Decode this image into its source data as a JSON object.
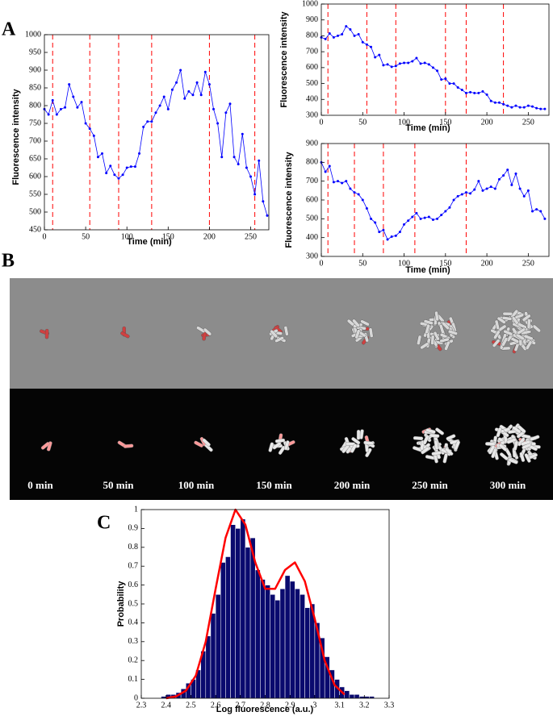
{
  "panel_labels": [
    "A",
    "B",
    "C"
  ],
  "image_labels": [
    "0 min",
    "50 min",
    "100 min",
    "150 min",
    "200 min",
    "250 min",
    "300 min"
  ],
  "chart_data": [
    {
      "type": "line",
      "xlabel": "Time (min)",
      "ylabel": "Fluorescence intensity",
      "xlim": [
        0,
        272
      ],
      "ylim": [
        450,
        1000
      ],
      "xticks": [
        0,
        50,
        100,
        150,
        200,
        250
      ],
      "yticks": [
        450,
        500,
        550,
        600,
        650,
        700,
        750,
        800,
        850,
        900,
        950,
        1000
      ],
      "x": [
        0,
        5,
        10,
        15,
        20,
        25,
        30,
        35,
        40,
        45,
        50,
        55,
        60,
        65,
        70,
        75,
        80,
        85,
        90,
        95,
        100,
        105,
        110,
        115,
        120,
        125,
        130,
        135,
        140,
        145,
        150,
        155,
        160,
        165,
        170,
        175,
        180,
        185,
        190,
        195,
        200,
        205,
        210,
        215,
        220,
        225,
        230,
        235,
        240,
        245,
        250,
        255,
        260,
        265,
        270
      ],
      "series": [
        {
          "color": "#0000ff",
          "values": [
            790,
            775,
            815,
            775,
            790,
            795,
            860,
            825,
            795,
            810,
            750,
            735,
            715,
            655,
            665,
            610,
            630,
            605,
            595,
            605,
            625,
            628,
            628,
            665,
            740,
            755,
            755,
            780,
            800,
            825,
            790,
            845,
            865,
            900,
            820,
            840,
            830,
            865,
            830,
            895,
            860,
            790,
            750,
            655,
            780,
            805,
            655,
            635,
            720,
            625,
            600,
            550,
            645,
            530,
            490
          ]
        }
      ],
      "vlines": {
        "color": "#ff0000",
        "x": [
          10,
          55,
          90,
          130,
          200,
          255
        ]
      }
    },
    {
      "type": "line",
      "xlabel": "Time (min)",
      "ylabel": "Fluorescence intensity",
      "xlim": [
        0,
        275
      ],
      "ylim": [
        300,
        1000
      ],
      "xticks": [
        0,
        50,
        100,
        150,
        200,
        250
      ],
      "yticks": [
        300,
        400,
        500,
        600,
        700,
        800,
        900,
        1000
      ],
      "x": [
        0,
        5,
        10,
        15,
        20,
        25,
        30,
        35,
        40,
        45,
        50,
        55,
        60,
        65,
        70,
        75,
        80,
        85,
        90,
        95,
        100,
        105,
        110,
        115,
        120,
        125,
        130,
        135,
        140,
        145,
        150,
        155,
        160,
        165,
        170,
        175,
        180,
        185,
        190,
        195,
        200,
        205,
        210,
        215,
        220,
        225,
        230,
        235,
        240,
        245,
        250,
        255,
        260,
        265,
        270
      ],
      "series": [
        {
          "color": "#0000ff",
          "values": [
            790,
            780,
            815,
            790,
            800,
            810,
            860,
            840,
            800,
            810,
            760,
            745,
            730,
            665,
            680,
            615,
            620,
            605,
            610,
            625,
            630,
            630,
            640,
            660,
            625,
            630,
            620,
            600,
            580,
            525,
            530,
            500,
            500,
            475,
            460,
            440,
            445,
            440,
            440,
            450,
            430,
            390,
            380,
            380,
            370,
            360,
            350,
            360,
            350,
            350,
            360,
            355,
            345,
            340,
            340
          ]
        }
      ],
      "vlines": {
        "color": "#ff0000",
        "x": [
          8,
          55,
          90,
          150,
          175,
          220
        ]
      }
    },
    {
      "type": "line",
      "xlabel": "Time (min)",
      "ylabel": "Fluorescence intensity",
      "xlim": [
        0,
        275
      ],
      "ylim": [
        300,
        900
      ],
      "xticks": [
        0,
        50,
        100,
        150,
        200,
        250
      ],
      "yticks": [
        300,
        400,
        500,
        600,
        700,
        800,
        900
      ],
      "x": [
        0,
        5,
        10,
        15,
        20,
        25,
        30,
        35,
        40,
        45,
        50,
        55,
        60,
        65,
        70,
        75,
        80,
        85,
        90,
        95,
        100,
        105,
        110,
        115,
        120,
        125,
        130,
        135,
        140,
        145,
        150,
        155,
        160,
        165,
        170,
        175,
        180,
        185,
        190,
        195,
        200,
        205,
        210,
        215,
        220,
        225,
        230,
        235,
        240,
        245,
        250,
        255,
        260,
        265,
        270
      ],
      "series": [
        {
          "color": "#0000ff",
          "values": [
            800,
            750,
            780,
            695,
            700,
            690,
            700,
            660,
            640,
            630,
            600,
            555,
            500,
            480,
            430,
            440,
            390,
            405,
            410,
            430,
            470,
            490,
            510,
            530,
            500,
            505,
            510,
            495,
            500,
            520,
            540,
            560,
            600,
            620,
            630,
            640,
            635,
            655,
            700,
            650,
            660,
            670,
            660,
            710,
            730,
            760,
            680,
            740,
            660,
            620,
            650,
            540,
            550,
            540,
            500
          ]
        }
      ],
      "vlines": {
        "color": "#ff0000",
        "x": [
          8,
          40,
          75,
          113,
          175
        ]
      }
    },
    {
      "type": "histogram",
      "xlabel": "Log fluorescence (a.u.)",
      "ylabel": "Probability",
      "color": "#0a0a6e",
      "xlim": [
        2.3,
        3.3
      ],
      "ylim": [
        0,
        1
      ],
      "xticks": [
        2.3,
        2.4,
        2.5,
        2.6,
        2.7,
        2.8,
        2.9,
        3,
        3.1,
        3.2,
        3.3
      ],
      "yticks": [
        0,
        0.1,
        0.2,
        0.3,
        0.4,
        0.5,
        0.6,
        0.7,
        0.8,
        0.9,
        1
      ],
      "bins": [
        2.38,
        2.4,
        2.42,
        2.44,
        2.46,
        2.48,
        2.5,
        2.52,
        2.54,
        2.56,
        2.58,
        2.6,
        2.62,
        2.64,
        2.66,
        2.68,
        2.7,
        2.72,
        2.74,
        2.76,
        2.78,
        2.8,
        2.82,
        2.84,
        2.86,
        2.88,
        2.9,
        2.92,
        2.94,
        2.96,
        2.98,
        3,
        3.02,
        3.04,
        3.06,
        3.08,
        3.1,
        3.12,
        3.14,
        3.16,
        3.18,
        3.2,
        3.22,
        3.24
      ],
      "values": [
        0.01,
        0.02,
        0.02,
        0.03,
        0.05,
        0.08,
        0.1,
        0.15,
        0.25,
        0.33,
        0.45,
        0.55,
        0.72,
        0.75,
        0.92,
        0.9,
        0.95,
        0.8,
        0.85,
        0.68,
        0.63,
        0.6,
        0.55,
        0.52,
        0.58,
        0.65,
        0.62,
        0.58,
        0.55,
        0.48,
        0.5,
        0.4,
        0.32,
        0.22,
        0.15,
        0.1,
        0.06,
        0.04,
        0.02,
        0.02,
        0.01,
        0.01,
        0.01
      ],
      "fit": {
        "color": "#ff0000",
        "x": [
          2.4,
          2.44,
          2.48,
          2.52,
          2.56,
          2.6,
          2.64,
          2.68,
          2.72,
          2.76,
          2.8,
          2.84,
          2.88,
          2.92,
          2.96,
          3,
          3.04,
          3.08,
          3.12
        ],
        "values": [
          0,
          0.01,
          0.04,
          0.12,
          0.3,
          0.58,
          0.85,
          1,
          0.92,
          0.72,
          0.58,
          0.58,
          0.68,
          0.72,
          0.62,
          0.42,
          0.2,
          0.07,
          0.02
        ]
      }
    }
  ]
}
